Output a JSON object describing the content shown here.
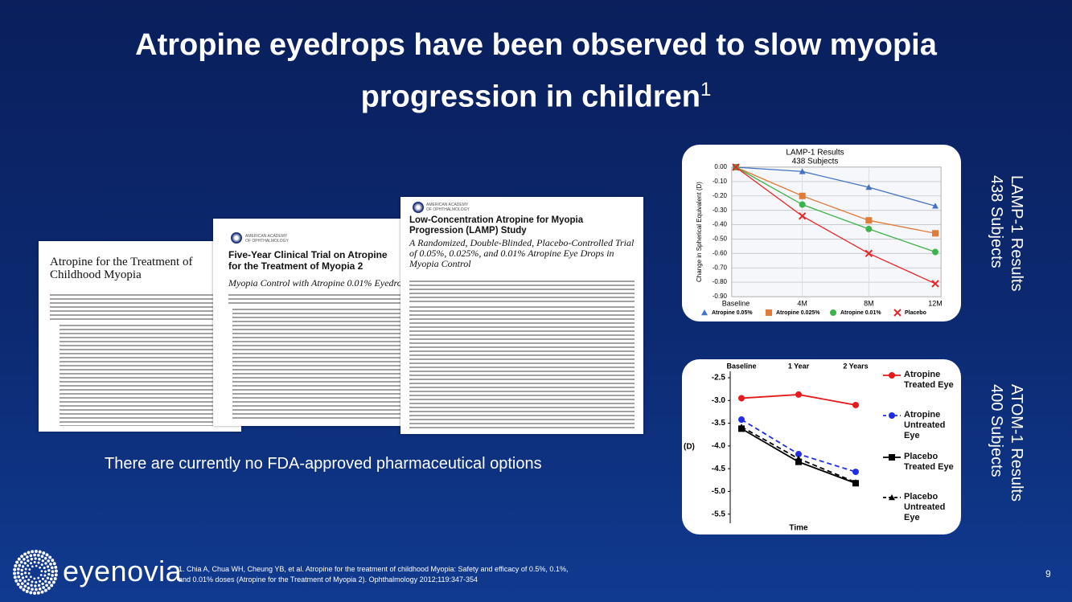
{
  "title": "Atropine eyedrops have been observed to slow myopia progression in children",
  "title_sup": "1",
  "statement": "There are currently no FDA-approved pharmaceutical options",
  "papers": [
    {
      "title": "Atropine for the Treatment of Childhood Myopia"
    },
    {
      "publisher": "AMERICAN ACADEMY OF OPHTHALMOLOGY",
      "title": "Five-Year Clinical Trial on Atropine for the Treatment of Myopia 2",
      "subtitle": "Myopia Control with Atropine 0.01% Eyedrops"
    },
    {
      "publisher": "AMERICAN ACADEMY OF OPHTHALMOLOGY",
      "title": "Low-Concentration Atropine for Myopia Progression (LAMP) Study",
      "subtitle": "A Randomized, Double-Blinded, Placebo-Controlled Trial of 0.05%, 0.025%, and 0.01% Atropine Eye Drops in Myopia Control"
    }
  ],
  "side_labels": [
    {
      "line1": "LAMP-1 Results",
      "line2": "438 Subjects"
    },
    {
      "line1": "ATOM-1 Results",
      "line2": "400 Subjects"
    }
  ],
  "logo": "eyenovia",
  "footnote": "1. Chia A, Chua WH, Cheung YB, et al. Atropine for the treatment of childhood Myopia: Safety and efficacy of 0.5%, 0.1%, and 0.01% doses (Atropine for the Treatment of Myopia 2). Ophthalmology 2012;119:347-354",
  "page_number": "9",
  "chart_data": [
    {
      "type": "line",
      "title": "LAMP-1 Results",
      "subtitle": "438 Subjects",
      "y_label": "Change in Spherical Equivalent (D)",
      "categories": [
        "Baseline",
        "4M",
        "8M",
        "12M"
      ],
      "series": [
        {
          "name": "Atropine 0.05%",
          "color": "#4472c4",
          "marker": "triangle",
          "dashed": false,
          "values": [
            0,
            -0.03,
            -0.14,
            -0.27
          ]
        },
        {
          "name": "Atropine 0.025%",
          "color": "#e07b39",
          "marker": "square",
          "dashed": false,
          "values": [
            0,
            -0.2,
            -0.37,
            -0.46
          ]
        },
        {
          "name": "Atropine 0.01%",
          "color": "#3cb44b",
          "marker": "circle",
          "dashed": false,
          "values": [
            0,
            -0.26,
            -0.43,
            -0.59
          ]
        },
        {
          "name": "Placebo",
          "color": "#e8262a",
          "marker": "x",
          "dashed": false,
          "values": [
            0,
            -0.34,
            -0.6,
            -0.81
          ]
        }
      ],
      "ylim": [
        -0.9,
        0
      ],
      "yticks": [
        {
          "value": 0,
          "label": "0.00"
        },
        {
          "value": -0.1,
          "label": "-0.10"
        },
        {
          "value": -0.2,
          "label": "-0.20"
        },
        {
          "value": -0.3,
          "label": "-0.30"
        },
        {
          "value": -0.4,
          "label": "-0.40"
        },
        {
          "value": -0.5,
          "label": "-0.50"
        },
        {
          "value": -0.6,
          "label": "-0.60"
        },
        {
          "value": -0.7,
          "label": "-0.70"
        },
        {
          "value": -0.8,
          "label": "-0.80"
        },
        {
          "value": -0.9,
          "label": "-0.90"
        }
      ],
      "grid": true,
      "x_axis": "bottom",
      "legend": "bottom"
    },
    {
      "type": "line",
      "y_label": "(D)",
      "x_label": "Time",
      "categories": [
        "Baseline",
        "1 Year",
        "2 Years"
      ],
      "series": [
        {
          "name": "Atropine Treated Eye",
          "color": "#e41a1c",
          "marker": "circle",
          "dashed": false,
          "values": [
            -2.95,
            -2.87,
            -3.1
          ]
        },
        {
          "name": "Atropine Untreated Eye",
          "color": "#1f2ee6",
          "marker": "circle",
          "dashed": true,
          "values": [
            -3.42,
            -4.18,
            -4.57
          ]
        },
        {
          "name": "Placebo Treated Eye",
          "color": "#000000",
          "marker": "square",
          "dashed": false,
          "values": [
            -3.62,
            -4.35,
            -4.82
          ]
        },
        {
          "name": "Placebo Untreated Eye",
          "color": "#000000",
          "marker": "triangle",
          "dashed": true,
          "values": [
            -3.58,
            -4.28,
            -4.8
          ]
        }
      ],
      "ylim": [
        -5.7,
        -2.5
      ],
      "yticks": [
        -2.5,
        {
          "value": -3,
          "label": "-3.0"
        },
        -3.5,
        {
          "value": -4,
          "label": "-4.0"
        },
        -4.5,
        {
          "value": -5,
          "label": "-5.0"
        },
        -5.5
      ],
      "grid": false,
      "x_axis": "top",
      "legend": "right"
    }
  ]
}
